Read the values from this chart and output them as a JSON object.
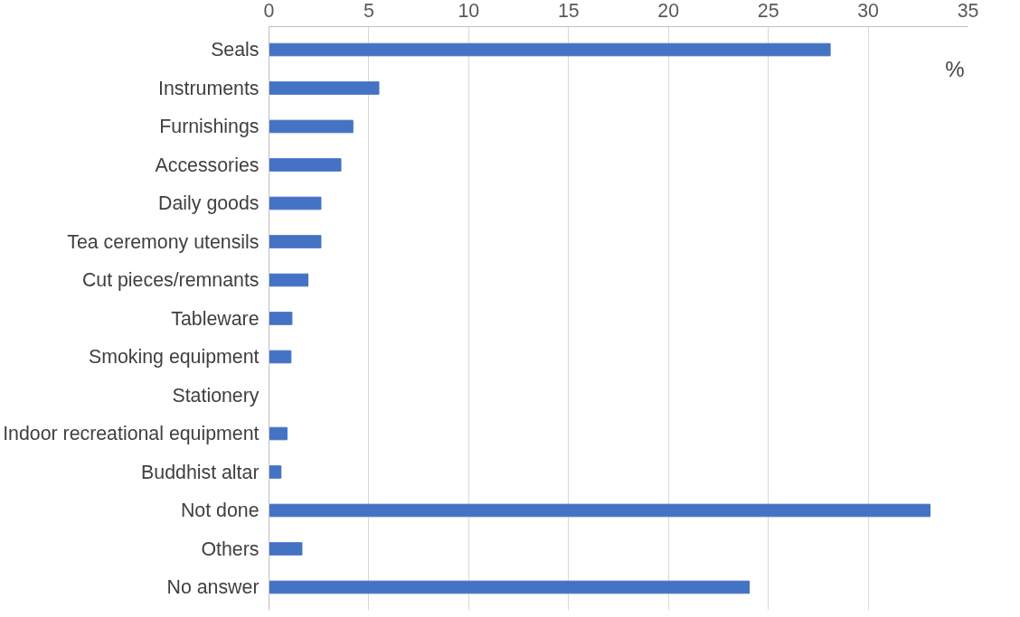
{
  "chart_data": {
    "type": "bar",
    "orientation": "horizontal",
    "xlabel": "%",
    "categories": [
      "Seals",
      "Instruments",
      "Furnishings",
      "Accessories",
      "Daily goods",
      "Tea ceremony utensils",
      "Cut pieces/remnants",
      "Tableware",
      "Smoking equipment",
      "Stationery",
      "Indoor recreational equipment",
      "Buddhist altar",
      "Not done",
      "Others",
      "No answer"
    ],
    "values": [
      28.1,
      5.5,
      4.2,
      3.6,
      2.6,
      2.6,
      1.95,
      1.15,
      1.1,
      0,
      0.9,
      0.6,
      33.1,
      1.65,
      24.05
    ],
    "color": "#4472c4",
    "xlim": [
      0,
      35
    ],
    "xticks": [
      0,
      5,
      10,
      15,
      20,
      25,
      30,
      35
    ],
    "grid": "x"
  }
}
